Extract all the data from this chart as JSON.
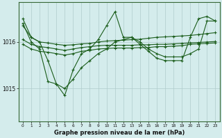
{
  "background_color": "#d4ecec",
  "grid_color": "#b0cccc",
  "line_color": "#1a5c1a",
  "title": "Graphe pression niveau de la mer (hPa)",
  "xlim": [
    -0.5,
    23.5
  ],
  "ylim": [
    1014.3,
    1016.85
  ],
  "yticks": [
    1015,
    1016
  ],
  "xticks": [
    0,
    1,
    2,
    3,
    4,
    5,
    6,
    7,
    8,
    9,
    10,
    11,
    12,
    13,
    14,
    15,
    16,
    17,
    18,
    19,
    20,
    21,
    22,
    23
  ],
  "series": [
    {
      "y": [
        1016.05,
        1015.95,
        1015.9,
        1015.88,
        1015.85,
        1015.82,
        1015.85,
        1015.88,
        1015.9,
        1015.92,
        1015.93,
        1015.93,
        1015.93,
        1015.93,
        1015.94,
        1015.94,
        1015.95,
        1015.95,
        1015.96,
        1015.97,
        1015.98,
        1015.99,
        1016.0,
        1016.01
      ]
    },
    {
      "y": [
        1015.95,
        1015.85,
        1015.8,
        1015.78,
        1015.75,
        1015.72,
        1015.75,
        1015.8,
        1015.82,
        1015.85,
        1015.86,
        1015.87,
        1015.87,
        1015.87,
        1015.88,
        1015.88,
        1015.9,
        1015.9,
        1015.91,
        1015.92,
        1015.95,
        1015.96,
        1015.97,
        1015.98
      ]
    },
    {
      "y": [
        1016.35,
        1016.1,
        1016.0,
        1015.98,
        1015.95,
        1015.93,
        1015.94,
        1015.96,
        1015.97,
        1016.0,
        1016.02,
        1016.03,
        1016.04,
        1016.05,
        1016.06,
        1016.08,
        1016.1,
        1016.11,
        1016.12,
        1016.13,
        1016.14,
        1016.16,
        1016.18,
        1016.2
      ]
    },
    {
      "y": [
        1016.5,
        1016.1,
        1016.0,
        1015.6,
        1015.1,
        1014.85,
        1015.4,
        1015.75,
        1015.85,
        1016.05,
        1016.35,
        1016.65,
        1016.1,
        1016.1,
        1015.95,
        1015.8,
        1015.65,
        1015.6,
        1015.6,
        1015.6,
        1016.1,
        1016.5,
        1016.55,
        1016.45
      ]
    },
    {
      "y": [
        1016.4,
        1016.0,
        1015.85,
        1015.15,
        1015.1,
        1015.0,
        1015.2,
        1015.45,
        1015.6,
        1015.75,
        1015.85,
        1016.0,
        1016.05,
        1016.1,
        1016.0,
        1015.85,
        1015.75,
        1015.68,
        1015.68,
        1015.68,
        1015.75,
        1015.85,
        1016.45,
        1016.45
      ]
    }
  ]
}
